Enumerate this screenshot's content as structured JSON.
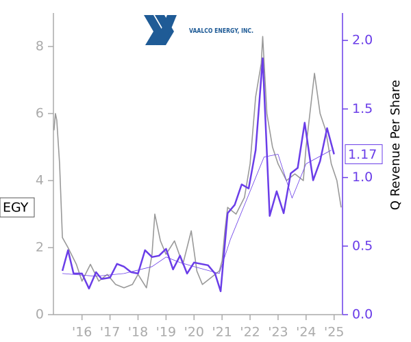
{
  "chart_data": {
    "type": "line",
    "logo_text": "VAALCO ENERGY, INC.",
    "ticker": "EGY",
    "y2_label": "Q Revenue Per Share",
    "xlim": [
      2014.98,
      2025.3
    ],
    "xticks": [
      {
        "value": 2016,
        "label": "'16"
      },
      {
        "value": 2017,
        "label": "'17"
      },
      {
        "value": 2018,
        "label": "'18"
      },
      {
        "value": 2019,
        "label": "'19"
      },
      {
        "value": 2020,
        "label": "'20"
      },
      {
        "value": 2021,
        "label": "'21"
      },
      {
        "value": 2022,
        "label": "'22"
      },
      {
        "value": 2023,
        "label": "'23"
      },
      {
        "value": 2024,
        "label": "'24"
      },
      {
        "value": 2025,
        "label": "'25"
      }
    ],
    "ylim": [
      0,
      9
    ],
    "yticks": [
      0,
      2,
      4,
      6,
      8
    ],
    "y2lim": [
      0,
      2.2
    ],
    "y2ticks": [
      {
        "value": 0,
        "label": "0.0"
      },
      {
        "value": 0.5,
        "label": "0.5"
      },
      {
        "value": 1,
        "label": "1.0"
      },
      {
        "value": 1.5,
        "label": "1.5"
      },
      {
        "value": 2,
        "label": "2.0"
      }
    ],
    "axis_color": "#aaaaaa",
    "y2_color": "#6a3de8",
    "series": [
      {
        "color": "#999999",
        "width": 1.6,
        "axis": "y",
        "x": [
          2015.0,
          2015.05,
          2015.1,
          2015.2,
          2015.3,
          2015.5,
          2015.8,
          2016.0,
          2016.3,
          2016.6,
          2016.9,
          2017.2,
          2017.5,
          2017.8,
          2018.0,
          2018.3,
          2018.5,
          2018.6,
          2018.8,
          2019.0,
          2019.3,
          2019.6,
          2019.9,
          2020.1,
          2020.3,
          2020.6,
          2020.9,
          2021.0,
          2021.1,
          2021.2,
          2021.5,
          2021.8,
          2022.0,
          2022.2,
          2022.4,
          2022.45,
          2022.6,
          2022.8,
          2023.0,
          2023.3,
          2023.6,
          2023.9,
          2024.0,
          2024.3,
          2024.5,
          2024.7,
          2024.9,
          2025.1,
          2025.25
        ],
        "values": [
          5.5,
          6.0,
          5.8,
          4.5,
          2.3,
          2.0,
          1.5,
          1.0,
          1.5,
          1.0,
          1.2,
          0.9,
          0.8,
          0.9,
          1.2,
          0.8,
          1.8,
          3.0,
          2.2,
          1.8,
          2.2,
          1.5,
          2.5,
          1.3,
          0.9,
          1.1,
          1.3,
          1.6,
          2.5,
          3.2,
          3.0,
          3.5,
          4.5,
          6.5,
          7.5,
          8.3,
          6.0,
          5.0,
          4.5,
          4.0,
          4.2,
          4.0,
          5.0,
          7.2,
          6.0,
          5.5,
          4.5,
          4.0,
          3.2
        ]
      },
      {
        "color": "#6a3de8",
        "width": 2.5,
        "axis": "y2",
        "x": [
          2015.3,
          2015.5,
          2015.7,
          2016.0,
          2016.25,
          2016.5,
          2016.7,
          2017.0,
          2017.25,
          2017.5,
          2017.75,
          2018.0,
          2018.25,
          2018.5,
          2018.75,
          2019.0,
          2019.25,
          2019.5,
          2019.75,
          2020.0,
          2020.25,
          2020.5,
          2020.75,
          2020.95,
          2021.2,
          2021.45,
          2021.7,
          2021.95,
          2022.2,
          2022.45,
          2022.7,
          2022.95,
          2023.2,
          2023.45,
          2023.7,
          2023.95,
          2024.25,
          2024.5,
          2024.75,
          2025.0
        ],
        "values": [
          0.32,
          0.47,
          0.3,
          0.3,
          0.19,
          0.31,
          0.26,
          0.27,
          0.37,
          0.35,
          0.31,
          0.3,
          0.47,
          0.42,
          0.43,
          0.48,
          0.33,
          0.43,
          0.3,
          0.38,
          0.37,
          0.36,
          0.3,
          0.17,
          0.74,
          0.8,
          0.95,
          0.92,
          1.2,
          1.87,
          0.72,
          0.9,
          0.74,
          1.03,
          1.07,
          1.4,
          0.98,
          1.12,
          1.36,
          1.17
        ]
      },
      {
        "color": "#6a3de8",
        "width": 0.8,
        "axis": "y2",
        "x": [
          2015.3,
          2016.5,
          2017.5,
          2018.5,
          2019.0,
          2019.5,
          2020.0,
          2020.9,
          2021.3,
          2021.9,
          2022.5,
          2023.0,
          2023.5,
          2024.0,
          2024.9
        ],
        "values": [
          0.3,
          0.28,
          0.3,
          0.35,
          0.42,
          0.38,
          0.35,
          0.3,
          0.55,
          0.85,
          1.15,
          1.17,
          0.85,
          1.1,
          1.2
        ]
      }
    ]
  }
}
